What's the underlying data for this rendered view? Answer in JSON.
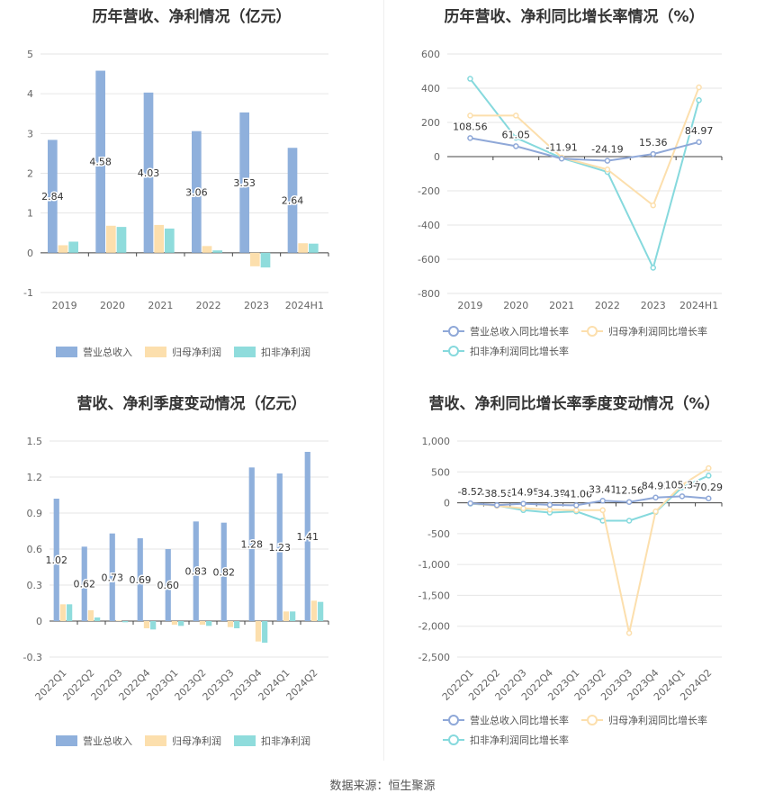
{
  "source_text": "数据来源：恒生聚源",
  "chart_data": [
    {
      "type": "bar",
      "title": "历年营收、净利情况（亿元）",
      "categories": [
        "2019",
        "2020",
        "2021",
        "2022",
        "2023",
        "2024H1"
      ],
      "ylim": [
        -1,
        5
      ],
      "yticks": [
        -1,
        0,
        1,
        2,
        3,
        4,
        5
      ],
      "series": [
        {
          "name": "营业总收入",
          "color": "#8fb0dc",
          "values": [
            2.84,
            4.58,
            4.03,
            3.06,
            3.53,
            2.64
          ]
        },
        {
          "name": "归母净利润",
          "color": "#fcdfad",
          "values": [
            0.19,
            0.68,
            0.7,
            0.17,
            -0.34,
            0.24
          ]
        },
        {
          "name": "扣非净利润",
          "color": "#8fdcdc",
          "values": [
            0.28,
            0.65,
            0.61,
            0.06,
            -0.37,
            0.23
          ]
        }
      ],
      "data_labels": [
        "2.84",
        "4.58",
        "4.03",
        "3.06",
        "3.53",
        "2.64"
      ],
      "legend": "bottom"
    },
    {
      "type": "line",
      "title": "历年营收、净利同比增长率情况（%）",
      "categories": [
        "2019",
        "2020",
        "2021",
        "2022",
        "2023",
        "2024H1"
      ],
      "ylim": [
        -800,
        600
      ],
      "yticks": [
        -800,
        -600,
        -400,
        -200,
        0,
        200,
        400,
        600
      ],
      "series": [
        {
          "name": "营业总收入同比增长率",
          "color": "#8fa8d8",
          "values": [
            108.56,
            61.05,
            -11.91,
            -24.19,
            15.36,
            84.97
          ]
        },
        {
          "name": "归母净利润同比增长率",
          "color": "#fcdfad",
          "values": [
            240,
            240,
            -5,
            -75,
            -285,
            405
          ]
        },
        {
          "name": "扣非净利润同比增长率",
          "color": "#86d9dd",
          "values": [
            455,
            110,
            -8,
            -90,
            -650,
            330
          ]
        }
      ],
      "data_labels": [
        "108.56",
        "61.05",
        "-11.91",
        "-24.19",
        "15.36",
        "84.97"
      ],
      "legend": "bottom"
    },
    {
      "type": "bar",
      "title": "营收、净利季度变动情况（亿元）",
      "categories": [
        "2022Q1",
        "2022Q2",
        "2022Q3",
        "2022Q4",
        "2023Q1",
        "2023Q2",
        "2023Q3",
        "2023Q4",
        "2024Q1",
        "2024Q2"
      ],
      "ylim": [
        -0.3,
        1.5
      ],
      "yticks": [
        -0.3,
        0,
        0.3,
        0.6,
        0.9,
        1.2,
        1.5
      ],
      "ytick_labels": [
        "-0.3",
        "0",
        "0.3",
        "0.6",
        "0.9",
        "1.2",
        "1.5"
      ],
      "series": [
        {
          "name": "营业总收入",
          "color": "#8fb0dc",
          "values": [
            1.02,
            0.62,
            0.73,
            0.69,
            0.6,
            0.83,
            0.82,
            1.28,
            1.23,
            1.41
          ]
        },
        {
          "name": "归母净利润",
          "color": "#fcdfad",
          "values": [
            0.14,
            0.09,
            0.005,
            -0.06,
            -0.03,
            -0.03,
            -0.05,
            -0.17,
            0.08,
            0.17
          ]
        },
        {
          "name": "扣非净利润",
          "color": "#8fdcdc",
          "values": [
            0.14,
            0.03,
            -0.01,
            -0.07,
            -0.04,
            -0.04,
            -0.06,
            -0.18,
            0.08,
            0.16
          ]
        }
      ],
      "data_labels": [
        "1.02",
        "0.62",
        "0.73",
        "0.69",
        "0.60",
        "0.83",
        "0.82",
        "1.28",
        "1.23",
        "1.41"
      ],
      "legend": "bottom"
    },
    {
      "type": "line",
      "title": "营收、净利同比增长率季度变动情况（%）",
      "categories": [
        "2022Q1",
        "2022Q2",
        "2022Q3",
        "2022Q4",
        "2023Q1",
        "2023Q2",
        "2023Q3",
        "2023Q4",
        "2024Q1",
        "2024Q2"
      ],
      "ylim": [
        -2500,
        1000
      ],
      "yticks": [
        -2500,
        -2000,
        -1500,
        -1000,
        -500,
        0,
        500,
        1000
      ],
      "ytick_labels": [
        "-2,500",
        "-2,000",
        "-1,500",
        "-1,000",
        "-500",
        "0",
        "500",
        "1,000"
      ],
      "series": [
        {
          "name": "营业总收入同比增长率",
          "color": "#8fa8d8",
          "values": [
            -8.52,
            -38.56,
            -14.95,
            -34.38,
            -41.06,
            33.41,
            12.56,
            84.92,
            105.34,
            70.29
          ]
        },
        {
          "name": "归母净利润同比增长率",
          "color": "#fcdfad",
          "values": [
            -10,
            -50,
            -90,
            -110,
            -120,
            -120,
            -2110,
            -140,
            290,
            560
          ]
        },
        {
          "name": "扣非净利润同比增长率",
          "color": "#86d9dd",
          "values": [
            -15,
            -45,
            -120,
            -160,
            -140,
            -290,
            -290,
            -150,
            250,
            440
          ]
        }
      ],
      "data_labels": [
        "-8.52",
        "-38.56",
        "-14.95",
        "-34.38",
        "-41.06",
        "33.41",
        "12.56",
        "84.92",
        "105.34",
        "70.29"
      ],
      "legend": "bottom"
    }
  ]
}
